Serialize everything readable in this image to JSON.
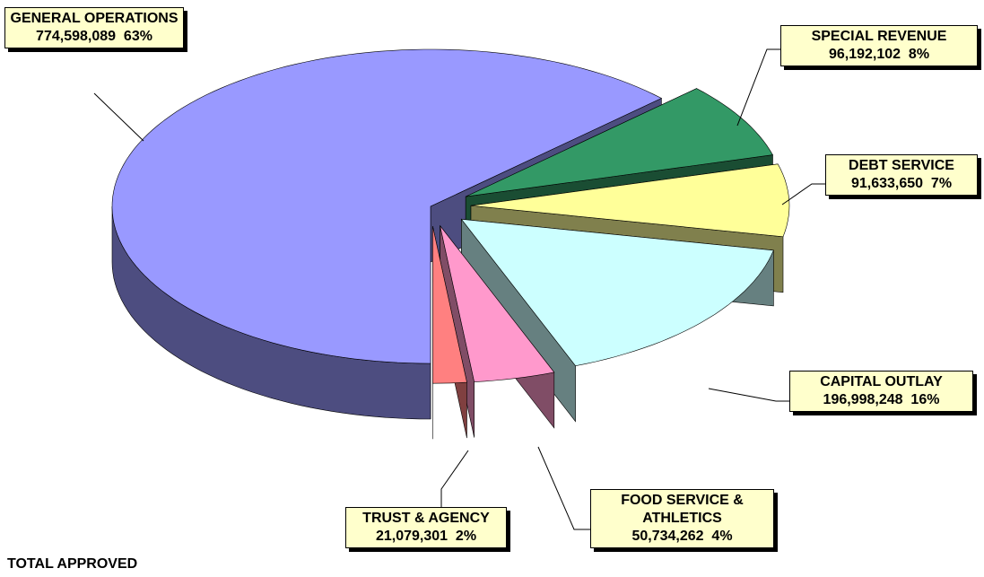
{
  "chart_data": {
    "type": "pie",
    "exploded": true,
    "three_d": true,
    "categories": [
      "GENERAL OPERATIONS",
      "SPECIAL REVENUE",
      "DEBT SERVICE",
      "CAPITAL OUTLAY",
      "FOOD SERVICE & ATHLETICS",
      "TRUST & AGENCY"
    ],
    "values": [
      774598089,
      96192102,
      91633650,
      196998248,
      50734262,
      21079301
    ],
    "value_labels": [
      "774,598,089",
      "96,192,102",
      "91,633,650",
      "196,998,248",
      "50,734,262",
      "21,079,301"
    ],
    "percents": [
      63,
      8,
      7,
      16,
      4,
      2
    ],
    "percent_labels": [
      "63%",
      "8%",
      "7%",
      "16%",
      "4%",
      "2%"
    ],
    "colors": [
      "#9999ff",
      "#339966",
      "#ffff99",
      "#ccffff",
      "#ff99cc",
      "#ff8080"
    ],
    "annotations": [
      "TOTAL APPROVED"
    ]
  }
}
